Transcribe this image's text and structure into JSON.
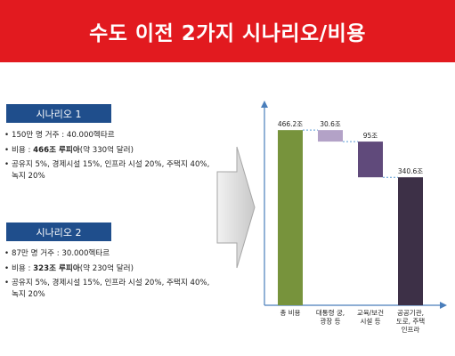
{
  "title": "수도 이전 2가지 시나리오/비용",
  "scenario1": {
    "header": "시나리오 1",
    "bullet1": "150만 명 거주 : 40.000헥타르",
    "bullet2_prefix": "비용 : ",
    "bullet2_bold": "466조 루피아",
    "bullet2_suffix": "(약 330억 달러)",
    "bullet3": "공유지 5%, 경제시설 15%, 인프라 시설 20%, 주택지 40%, 녹지 20%"
  },
  "scenario2": {
    "header": "시나리오 2",
    "bullet1": "87만 명 거주 : 30.000헥타르",
    "bullet2_prefix": "비용 : ",
    "bullet2_bold": "323조 루피아",
    "bullet2_suffix": "(약 230억 달러)",
    "bullet3": "공유지 5%, 경제시설 15%, 인프라 시설 20%, 주택지 40%, 녹지 20%"
  },
  "chart_data": {
    "type": "waterfall",
    "categories": [
      [
        "총 비용"
      ],
      [
        "대통령 궁,",
        "광장 등"
      ],
      [
        "교육/보건",
        "시설 등"
      ],
      [
        "공공기관,",
        "도로, 주택",
        "인프라"
      ]
    ],
    "values": [
      466.2,
      30.6,
      95,
      340.6
    ],
    "value_labels": [
      "466.2조",
      "30.6조",
      "95조",
      "340.6조"
    ],
    "bar_colors": [
      "#77933c",
      "#b3a2c7",
      "#604a7b",
      "#3d3047"
    ],
    "ylim": [
      0,
      540
    ],
    "connector_color": "#5b9bd5"
  }
}
